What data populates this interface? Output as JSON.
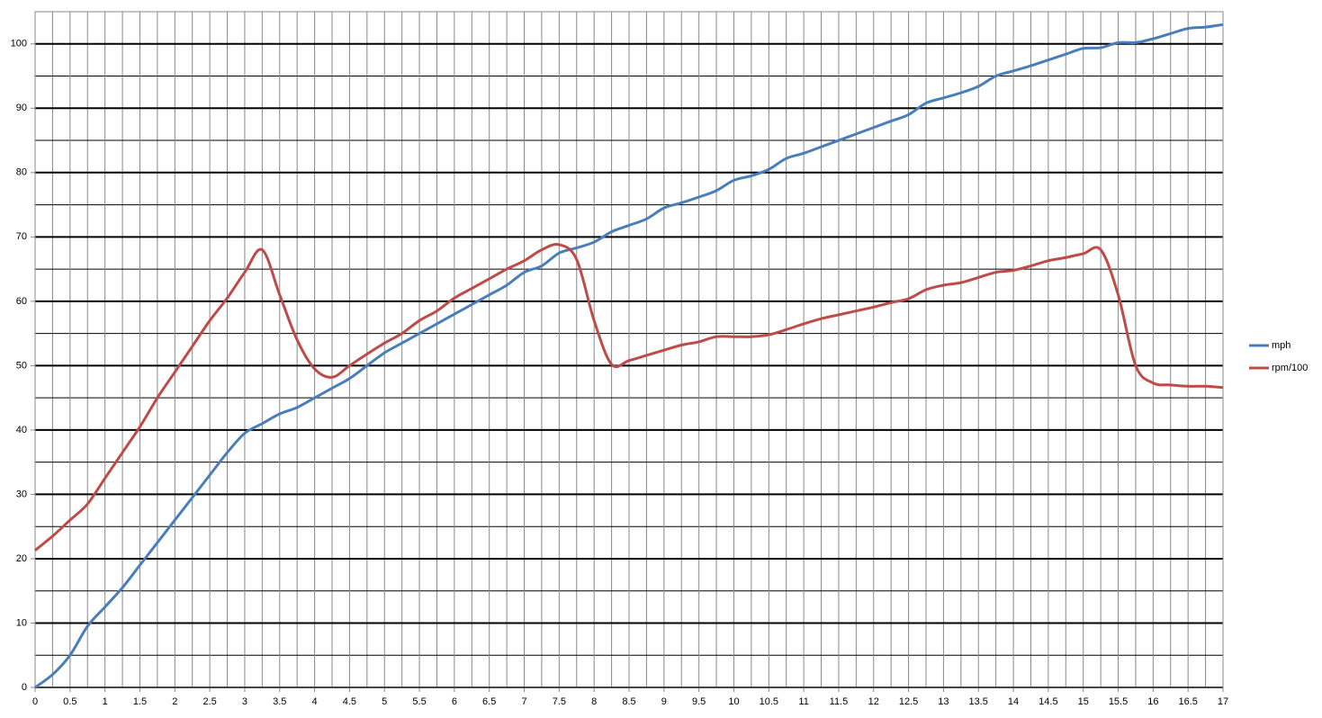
{
  "chart_data": {
    "type": "line",
    "x": [
      0,
      0.25,
      0.5,
      0.75,
      1,
      1.25,
      1.5,
      1.75,
      2,
      2.25,
      2.5,
      2.75,
      3,
      3.25,
      3.5,
      3.75,
      4,
      4.25,
      4.5,
      4.75,
      5,
      5.25,
      5.5,
      5.75,
      6,
      6.25,
      6.5,
      6.75,
      7,
      7.25,
      7.5,
      7.75,
      8,
      8.25,
      8.5,
      8.75,
      9,
      9.25,
      9.5,
      9.75,
      10,
      10.25,
      10.5,
      10.75,
      11,
      11.25,
      11.5,
      11.75,
      12,
      12.25,
      12.5,
      12.75,
      13,
      13.25,
      13.5,
      13.75,
      14,
      14.25,
      14.5,
      14.75,
      15,
      15.25,
      15.5,
      15.75,
      16,
      16.25,
      16.5,
      16.75,
      17
    ],
    "series": [
      {
        "name": "mph",
        "color": "#4a7ebb",
        "values": [
          0,
          2,
          5,
          9.5,
          12.5,
          15.5,
          19,
          22.5,
          26,
          29.5,
          33,
          36.5,
          39.5,
          41,
          42.5,
          43.5,
          45,
          46.5,
          48,
          50,
          52,
          53.5,
          55,
          56.5,
          58,
          59.5,
          61,
          62.5,
          64.5,
          65.5,
          67.5,
          68.3,
          69.2,
          70.8,
          71.8,
          72.8,
          74.5,
          75.3,
          76.2,
          77.2,
          78.8,
          79.5,
          80.5,
          82.2,
          83,
          84,
          85,
          86,
          87,
          88,
          89,
          90.8,
          91.6,
          92.4,
          93.4,
          95,
          95.8,
          96.6,
          97.5,
          98.4,
          99.3,
          99.4,
          100.2,
          100.2,
          100.8,
          101.6,
          102.4,
          102.6,
          103
        ]
      },
      {
        "name": "rpm/100",
        "color": "#be4b48",
        "values": [
          21.3,
          23.5,
          26,
          28.5,
          32.5,
          36.5,
          40.5,
          45,
          49,
          53,
          57,
          60.5,
          64.5,
          68,
          61,
          54,
          49.5,
          48.2,
          50,
          51.8,
          53.5,
          55,
          57,
          58.5,
          60.5,
          62,
          63.5,
          65,
          66.3,
          68,
          68.8,
          66.5,
          57,
          50.2,
          50.8,
          51.6,
          52.4,
          53.2,
          53.7,
          54.5,
          54.5,
          54.5,
          54.8,
          55.6,
          56.5,
          57.3,
          57.9,
          58.5,
          59.1,
          59.8,
          60.4,
          61.8,
          62.5,
          62.9,
          63.7,
          64.5,
          64.8,
          65.5,
          66.3,
          66.8,
          67.4,
          68,
          61,
          50,
          47.3,
          47,
          46.8,
          46.8,
          46.6
        ]
      }
    ],
    "xlim": [
      0,
      17
    ],
    "xticks": [
      0,
      0.5,
      1,
      1.5,
      2,
      2.5,
      3,
      3.5,
      4,
      4.5,
      5,
      5.5,
      6,
      6.5,
      7,
      7.5,
      8,
      8.5,
      9,
      9.5,
      10,
      10.5,
      11,
      11.5,
      12,
      12.5,
      13,
      13.5,
      14,
      14.5,
      15,
      15.5,
      16,
      16.5,
      17
    ],
    "ylim": [
      0,
      105
    ],
    "yticks": [
      0,
      10,
      20,
      30,
      40,
      50,
      60,
      70,
      80,
      90,
      100
    ],
    "grid": true,
    "minor_grid": true,
    "legend": "right"
  }
}
